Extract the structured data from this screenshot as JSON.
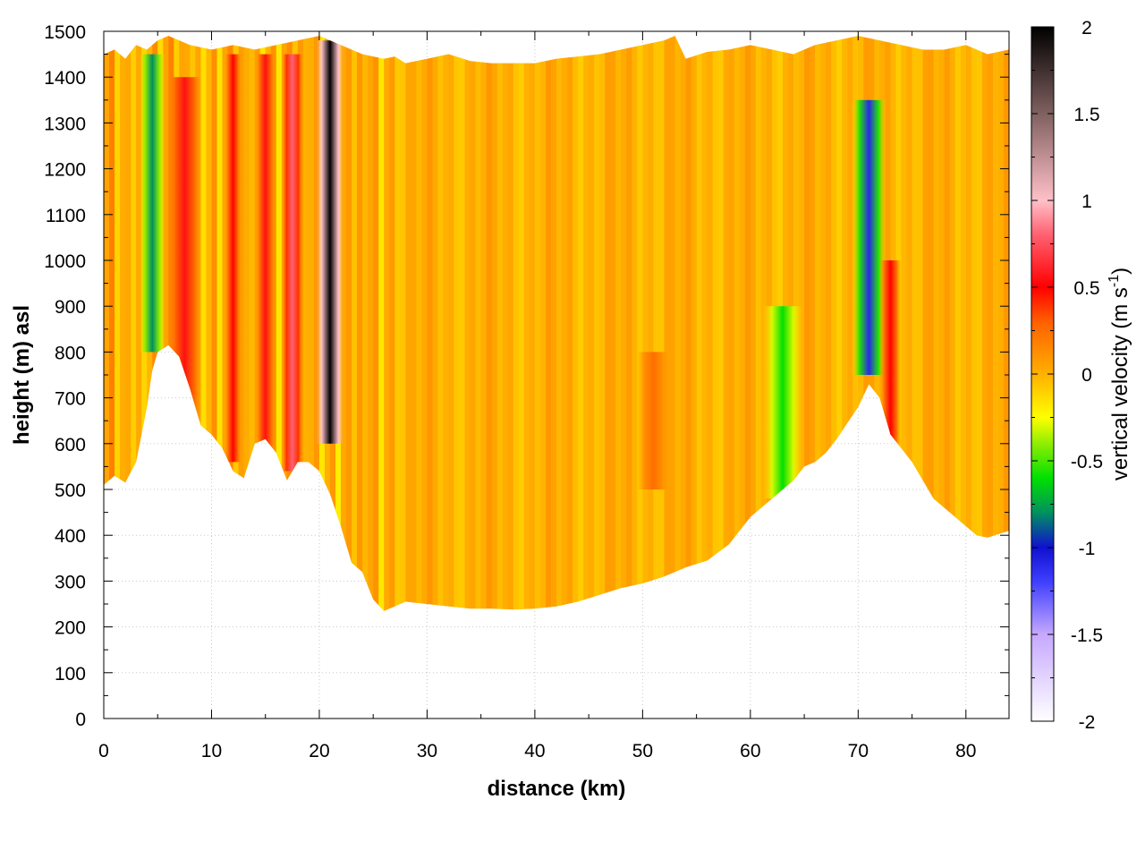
{
  "chart_data": {
    "type": "heatmap",
    "title": "",
    "xlabel": "distance (km)",
    "ylabel": "height (m) asl",
    "colorbar_label_main": "vertical velocity (m s",
    "colorbar_label_sup": "-1",
    "colorbar_label_close": ")",
    "xlim": [
      0,
      84
    ],
    "ylim": [
      0,
      1500
    ],
    "x_ticks": [
      0,
      10,
      20,
      30,
      40,
      50,
      60,
      70,
      80
    ],
    "y_ticks": [
      0,
      100,
      200,
      300,
      400,
      500,
      600,
      700,
      800,
      900,
      1000,
      1100,
      1200,
      1300,
      1400,
      1500
    ],
    "colorbar_range": [
      -2,
      2
    ],
    "colorbar_ticks": [
      2,
      1.5,
      1,
      0.5,
      0,
      -0.5,
      -1,
      -1.5,
      -2
    ],
    "colormap": [
      {
        "v": -2.0,
        "color": "#ffffff"
      },
      {
        "v": -1.5,
        "color": "#c6a8ff"
      },
      {
        "v": -1.2,
        "color": "#4040ff"
      },
      {
        "v": -1.0,
        "color": "#1010d0"
      },
      {
        "v": -0.8,
        "color": "#009060"
      },
      {
        "v": -0.6,
        "color": "#00e000"
      },
      {
        "v": -0.4,
        "color": "#90ee00"
      },
      {
        "v": -0.25,
        "color": "#ffff00"
      },
      {
        "v": 0.0,
        "color": "#ffb000"
      },
      {
        "v": 0.3,
        "color": "#ff6000"
      },
      {
        "v": 0.5,
        "color": "#ff0000"
      },
      {
        "v": 0.8,
        "color": "#ff6070"
      },
      {
        "v": 1.0,
        "color": "#ffc0c8"
      },
      {
        "v": 1.5,
        "color": "#806060"
      },
      {
        "v": 2.0,
        "color": "#000000"
      }
    ],
    "terrain_profile": {
      "x": [
        0,
        1,
        2,
        3,
        4,
        4.5,
        5,
        6,
        7,
        8,
        9,
        10,
        11,
        12,
        13,
        14,
        15,
        16,
        17,
        18,
        19,
        20,
        21,
        22,
        23,
        24,
        25,
        26,
        27,
        28,
        30,
        32,
        34,
        36,
        38,
        40,
        42,
        44,
        46,
        48,
        50,
        52,
        54,
        56,
        58,
        60,
        62,
        64,
        65,
        66,
        67,
        68,
        70,
        71,
        72,
        73,
        74,
        75,
        76,
        77,
        78,
        79,
        80,
        81,
        82,
        84
      ],
      "y": [
        510,
        530,
        515,
        560,
        680,
        760,
        800,
        815,
        790,
        720,
        640,
        620,
        590,
        540,
        525,
        600,
        610,
        580,
        520,
        560,
        560,
        540,
        490,
        420,
        340,
        320,
        260,
        235,
        245,
        255,
        250,
        245,
        240,
        240,
        238,
        240,
        245,
        255,
        270,
        285,
        295,
        310,
        330,
        345,
        380,
        440,
        480,
        520,
        550,
        560,
        580,
        610,
        680,
        730,
        700,
        620,
        590,
        560,
        520,
        480,
        460,
        440,
        420,
        400,
        395,
        410
      ]
    },
    "top_envelope": {
      "x": [
        0,
        1,
        2,
        3,
        4,
        5,
        6,
        7,
        8,
        10,
        12,
        14,
        16,
        18,
        20,
        22,
        24,
        26,
        27,
        28,
        30,
        32,
        34,
        36,
        38,
        40,
        42,
        44,
        46,
        48,
        50,
        52,
        53,
        54,
        56,
        58,
        60,
        62,
        64,
        66,
        68,
        70,
        72,
        74,
        76,
        78,
        80,
        82,
        84
      ],
      "y": [
        1450,
        1460,
        1440,
        1470,
        1460,
        1480,
        1490,
        1480,
        1470,
        1460,
        1470,
        1460,
        1470,
        1480,
        1490,
        1470,
        1450,
        1440,
        1445,
        1430,
        1440,
        1450,
        1435,
        1430,
        1430,
        1430,
        1440,
        1445,
        1450,
        1460,
        1470,
        1480,
        1490,
        1440,
        1455,
        1460,
        1470,
        1460,
        1450,
        1470,
        1480,
        1490,
        1480,
        1470,
        1460,
        1460,
        1470,
        1450,
        1460
      ]
    },
    "features": [
      {
        "name": "downdraft-5km",
        "x": 4.5,
        "x_width": 1.2,
        "y_bottom": 800,
        "y_top": 1450,
        "value": -0.8
      },
      {
        "name": "updraft-8km",
        "x": 7.5,
        "x_width": 1.6,
        "y_bottom": 650,
        "y_top": 1400,
        "value": 0.55
      },
      {
        "name": "updraft-12km",
        "x": 12,
        "x_width": 0.8,
        "y_bottom": 560,
        "y_top": 1450,
        "value": 0.5
      },
      {
        "name": "updraft-15km",
        "x": 15,
        "x_width": 0.9,
        "y_bottom": 580,
        "y_top": 1450,
        "value": 0.55
      },
      {
        "name": "updraft-17km",
        "x": 17.5,
        "x_width": 1.0,
        "y_bottom": 540,
        "y_top": 1450,
        "value": 0.8
      },
      {
        "name": "updraft-21km",
        "x": 21,
        "x_width": 1.4,
        "y_bottom": 600,
        "y_top": 1480,
        "value": 2.0
      },
      {
        "name": "updraft-51km",
        "x": 51,
        "x_width": 1.5,
        "y_bottom": 500,
        "y_top": 800,
        "value": 0.25
      },
      {
        "name": "downdraft-63km",
        "x": 63,
        "x_width": 1.8,
        "y_bottom": 480,
        "y_top": 900,
        "value": -0.6
      },
      {
        "name": "downdraft-71km",
        "x": 71,
        "x_width": 1.6,
        "y_bottom": 750,
        "y_top": 1350,
        "value": -1.1
      },
      {
        "name": "updraft-73km",
        "x": 73,
        "x_width": 1.0,
        "y_bottom": 560,
        "y_top": 1000,
        "value": 0.5
      }
    ]
  }
}
